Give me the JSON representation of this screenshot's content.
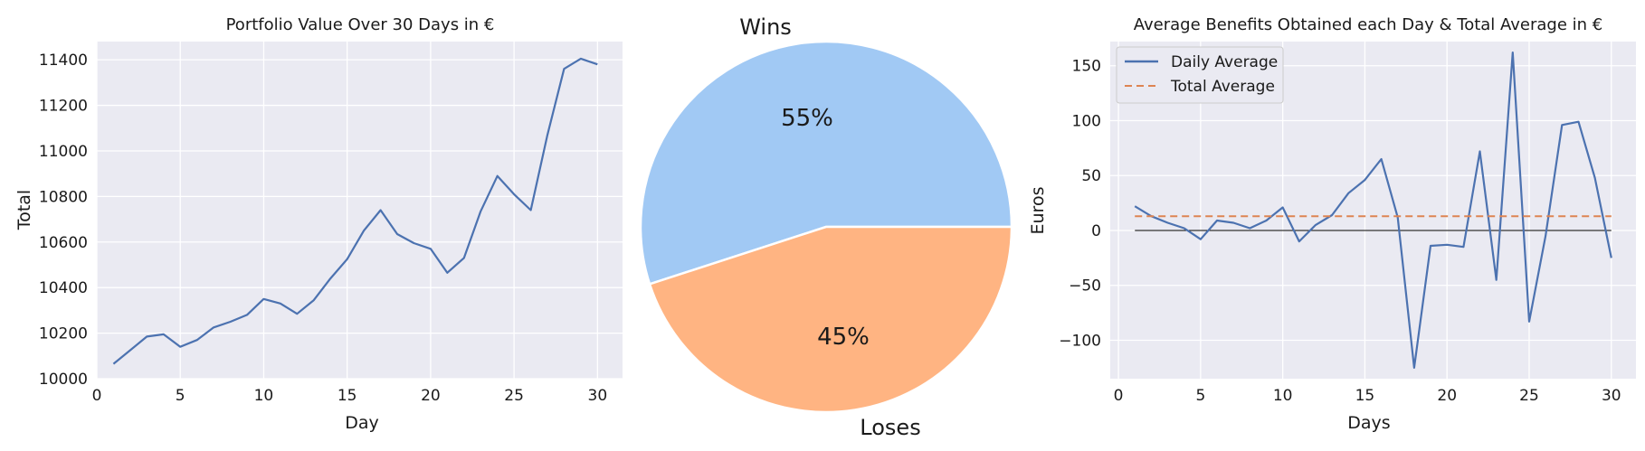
{
  "chart_data": [
    {
      "type": "line",
      "title": "Portfolio Value Over 30 Days in €",
      "xlabel": "Day",
      "ylabel": "Total",
      "xlim": [
        0,
        31.5
      ],
      "ylim": [
        10000,
        11480
      ],
      "xticks": [
        0,
        5,
        10,
        15,
        20,
        25,
        30
      ],
      "yticks": [
        10000,
        10200,
        10400,
        10600,
        10800,
        11000,
        11200,
        11400
      ],
      "grid": true,
      "color": "#4c72b0",
      "x": [
        1,
        2,
        3,
        4,
        5,
        6,
        7,
        8,
        9,
        10,
        11,
        12,
        13,
        14,
        15,
        16,
        17,
        18,
        19,
        20,
        21,
        22,
        23,
        24,
        25,
        26,
        27,
        28,
        29,
        30
      ],
      "values": [
        10065,
        10125,
        10185,
        10195,
        10140,
        10170,
        10225,
        10250,
        10280,
        10350,
        10330,
        10285,
        10345,
        10440,
        10525,
        10650,
        10740,
        10635,
        10595,
        10570,
        10465,
        10530,
        10735,
        10890,
        10810,
        10740,
        11070,
        11360,
        11405,
        11380
      ]
    },
    {
      "type": "pie",
      "labels": [
        "Wins",
        "Loses"
      ],
      "values": [
        55,
        45
      ],
      "pct_labels": [
        "55%",
        "45%"
      ],
      "colors": [
        "#a1c9f4",
        "#ffb482"
      ]
    },
    {
      "type": "line",
      "title": "Average Benefits Obtained each Day & Total Average in €",
      "xlabel": "Days",
      "ylabel": "Euros",
      "xlim": [
        -0.5,
        31.5
      ],
      "ylim": [
        -135,
        172
      ],
      "xticks": [
        0,
        5,
        10,
        15,
        20,
        25,
        30
      ],
      "yticks": [
        -100,
        -50,
        0,
        50,
        100,
        150
      ],
      "ytick_labels": [
        "−100",
        "−50",
        "0",
        "50",
        "100",
        "150"
      ],
      "grid": true,
      "legend_position": "top-left",
      "zero_line": true,
      "x": [
        1,
        2,
        3,
        4,
        5,
        6,
        7,
        8,
        9,
        10,
        11,
        12,
        13,
        14,
        15,
        16,
        17,
        18,
        19,
        20,
        21,
        22,
        23,
        24,
        25,
        26,
        27,
        28,
        29,
        30
      ],
      "series": [
        {
          "name": "Daily Average",
          "style": "solid",
          "color": "#4c72b0",
          "values": [
            22,
            13,
            7,
            2,
            -8,
            9,
            7,
            2,
            9,
            21,
            -10,
            5,
            14,
            34,
            46,
            65,
            12,
            -125,
            -14,
            -13,
            -15,
            72,
            -45,
            162,
            -83,
            -5,
            96,
            99,
            48,
            -25
          ]
        },
        {
          "name": "Total Average",
          "style": "dashed",
          "color": "#dd8452",
          "values": [
            13,
            13,
            13,
            13,
            13,
            13,
            13,
            13,
            13,
            13,
            13,
            13,
            13,
            13,
            13,
            13,
            13,
            13,
            13,
            13,
            13,
            13,
            13,
            13,
            13,
            13,
            13,
            13,
            13,
            13
          ]
        }
      ]
    }
  ]
}
